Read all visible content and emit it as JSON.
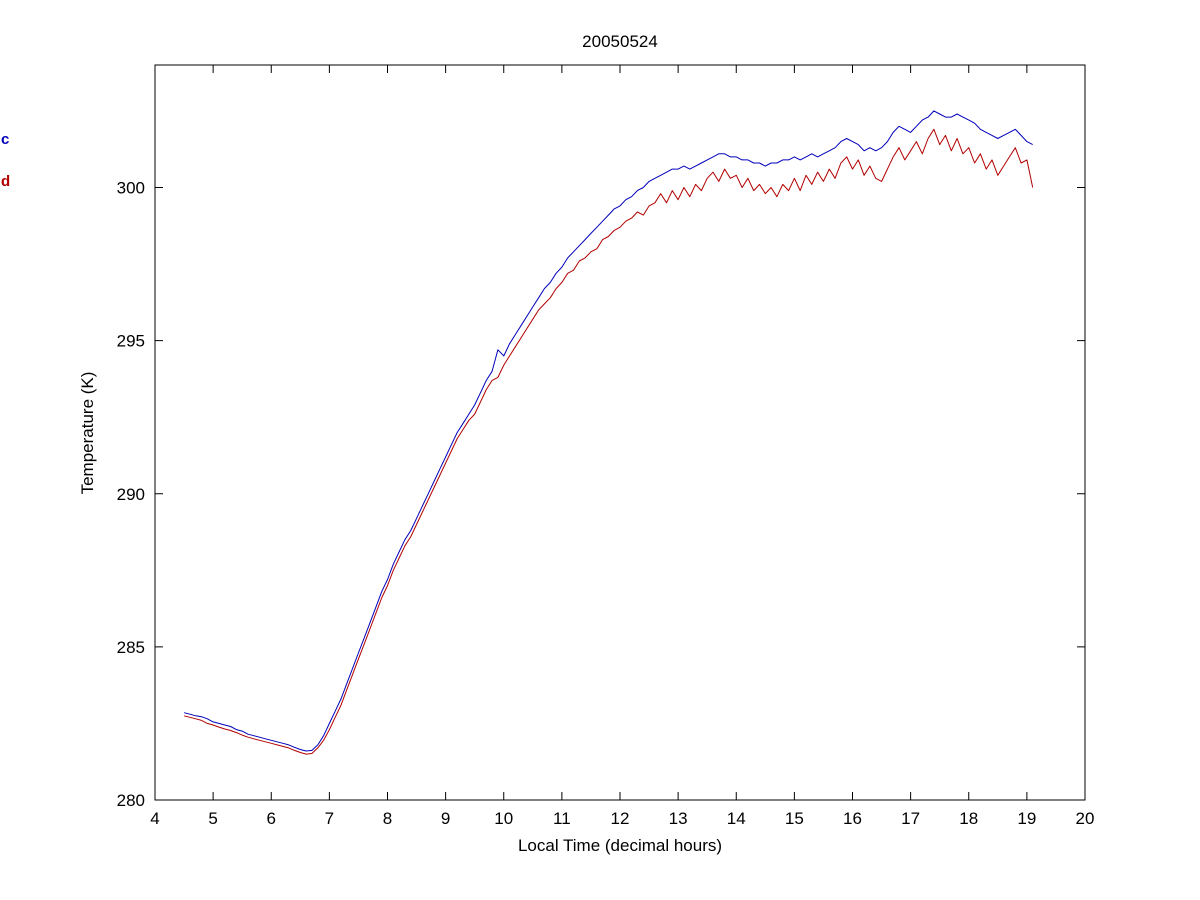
{
  "chart_data": {
    "type": "line",
    "title": "20050524",
    "xlabel": "Local Time (decimal hours)",
    "ylabel": "Temperature (K)",
    "xlim": [
      4,
      20
    ],
    "ylim": [
      280,
      304
    ],
    "xticks": [
      4,
      5,
      6,
      7,
      8,
      9,
      10,
      11,
      12,
      13,
      14,
      15,
      16,
      17,
      18,
      19,
      20
    ],
    "yticks": [
      280,
      285,
      290,
      295,
      300
    ],
    "grid": false,
    "legend_position": "left-edge-clipped",
    "x_start": 4.5,
    "x_step": 0.1,
    "series": [
      {
        "name": "series-blue",
        "legend_label": "c",
        "color": "#0000BB",
        "values": [
          282.85,
          282.8,
          282.75,
          282.72,
          282.65,
          282.55,
          282.5,
          282.45,
          282.4,
          282.3,
          282.25,
          282.15,
          282.1,
          282.05,
          282.0,
          281.95,
          281.9,
          281.85,
          281.8,
          281.72,
          281.65,
          281.6,
          281.62,
          281.8,
          282.1,
          282.5,
          282.9,
          283.3,
          283.8,
          284.3,
          284.8,
          285.3,
          285.8,
          286.3,
          286.8,
          287.2,
          287.7,
          288.1,
          288.5,
          288.8,
          289.2,
          289.6,
          290.0,
          290.4,
          290.8,
          291.2,
          291.6,
          292.0,
          292.3,
          292.6,
          292.9,
          293.3,
          293.7,
          294.0,
          294.7,
          294.5,
          294.9,
          295.2,
          295.5,
          295.8,
          296.1,
          296.4,
          296.7,
          296.9,
          297.2,
          297.4,
          297.7,
          297.9,
          298.1,
          298.3,
          298.5,
          298.7,
          298.9,
          299.1,
          299.3,
          299.4,
          299.6,
          299.7,
          299.9,
          300.0,
          300.2,
          300.3,
          300.4,
          300.5,
          300.6,
          300.6,
          300.7,
          300.6,
          300.7,
          300.8,
          300.9,
          301.0,
          301.1,
          301.1,
          301.0,
          301.0,
          300.9,
          300.9,
          300.8,
          300.8,
          300.7,
          300.8,
          300.8,
          300.9,
          300.9,
          301.0,
          300.9,
          301.0,
          301.1,
          301.0,
          301.1,
          301.2,
          301.3,
          301.5,
          301.6,
          301.5,
          301.4,
          301.2,
          301.3,
          301.2,
          301.3,
          301.5,
          301.8,
          302.0,
          301.9,
          301.8,
          302.0,
          302.2,
          302.3,
          302.5,
          302.4,
          302.3,
          302.3,
          302.4,
          302.3,
          302.2,
          302.1,
          301.9,
          301.8,
          301.7,
          301.6,
          301.7,
          301.8,
          301.9,
          301.7,
          301.5,
          301.4
        ]
      },
      {
        "name": "series-red",
        "legend_label": "d",
        "color": "#B30000",
        "values": [
          282.75,
          282.7,
          282.65,
          282.6,
          282.5,
          282.45,
          282.38,
          282.32,
          282.27,
          282.2,
          282.12,
          282.05,
          282.0,
          281.95,
          281.9,
          281.85,
          281.8,
          281.75,
          281.7,
          281.62,
          281.55,
          281.5,
          281.52,
          281.7,
          281.95,
          282.3,
          282.7,
          283.1,
          283.6,
          284.1,
          284.6,
          285.1,
          285.6,
          286.1,
          286.6,
          287.0,
          287.5,
          287.9,
          288.3,
          288.6,
          289.0,
          289.4,
          289.8,
          290.2,
          290.6,
          291.0,
          291.4,
          291.8,
          292.1,
          292.4,
          292.6,
          293.0,
          293.4,
          293.7,
          293.8,
          294.2,
          294.5,
          294.8,
          295.1,
          295.4,
          295.7,
          296.0,
          296.2,
          296.4,
          296.7,
          296.9,
          297.2,
          297.3,
          297.6,
          297.7,
          297.9,
          298.0,
          298.3,
          298.4,
          298.6,
          298.7,
          298.9,
          299.0,
          299.2,
          299.1,
          299.4,
          299.5,
          299.8,
          299.5,
          299.9,
          299.6,
          300.0,
          299.7,
          300.1,
          299.9,
          300.3,
          300.5,
          300.2,
          300.6,
          300.3,
          300.4,
          300.0,
          300.3,
          299.9,
          300.1,
          299.8,
          300.0,
          299.7,
          300.1,
          299.9,
          300.3,
          299.9,
          300.4,
          300.1,
          300.5,
          300.2,
          300.6,
          300.3,
          300.8,
          301.0,
          300.6,
          300.9,
          300.4,
          300.7,
          300.3,
          300.2,
          300.6,
          301.0,
          301.3,
          300.9,
          301.2,
          301.5,
          301.1,
          301.6,
          301.9,
          301.4,
          301.7,
          301.2,
          301.6,
          301.1,
          301.3,
          300.8,
          301.1,
          300.6,
          300.9,
          300.4,
          300.7,
          301.0,
          301.3,
          300.8,
          300.9,
          300.0
        ]
      }
    ]
  }
}
